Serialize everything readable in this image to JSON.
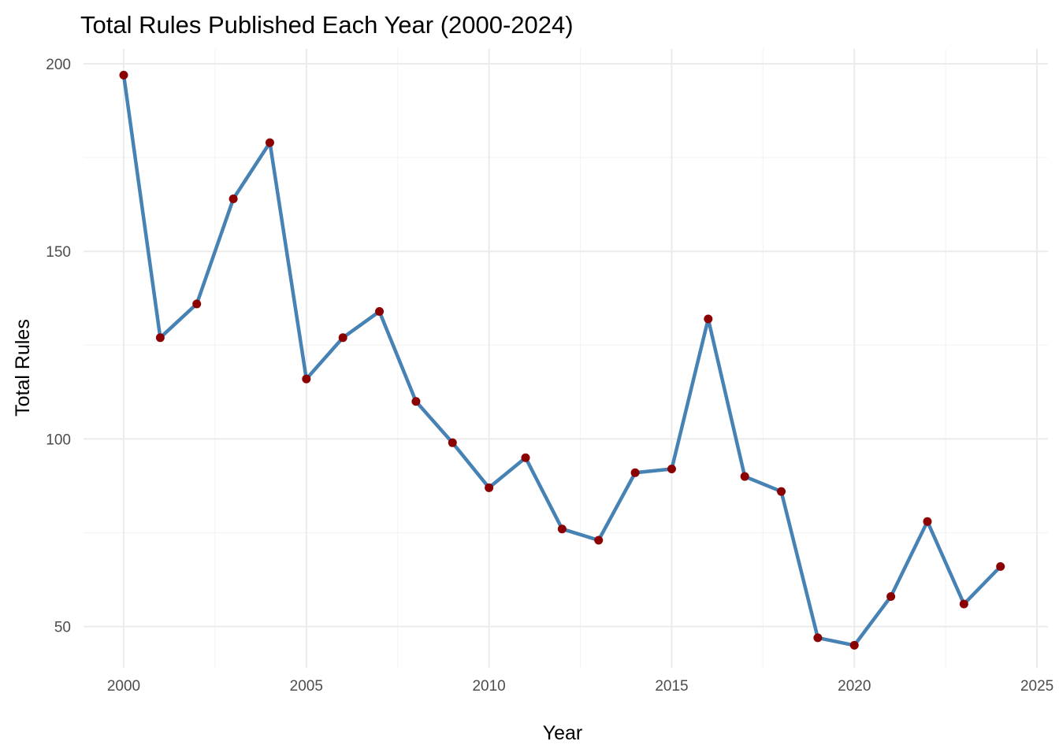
{
  "chart_data": {
    "type": "line",
    "title": "Total Rules Published Each Year (2000-2024)",
    "xlabel": "Year",
    "ylabel": "Total Rules",
    "x_ticks": [
      "2000",
      "2005",
      "2010",
      "2015",
      "2020",
      "2025"
    ],
    "y_ticks": [
      "50",
      "100",
      "150",
      "200"
    ],
    "xlim": [
      1998.9,
      2025.3
    ],
    "ylim": [
      39,
      204
    ],
    "grid": true,
    "legend": "none",
    "series": [
      {
        "x": [
          2000,
          2001,
          2002,
          2003,
          2004,
          2005,
          2006,
          2007,
          2008,
          2009,
          2010,
          2011,
          2012,
          2013,
          2014,
          2015,
          2016,
          2017,
          2018,
          2019,
          2020,
          2021,
          2022,
          2023,
          2024
        ],
        "values": [
          197,
          127,
          136,
          164,
          179,
          116,
          127,
          134,
          110,
          99,
          87,
          95,
          76,
          73,
          91,
          92,
          132,
          90,
          86,
          47,
          45,
          58,
          78,
          56,
          66
        ]
      }
    ],
    "colors": {
      "line": "#4682b4",
      "point": "#8b0000"
    }
  }
}
